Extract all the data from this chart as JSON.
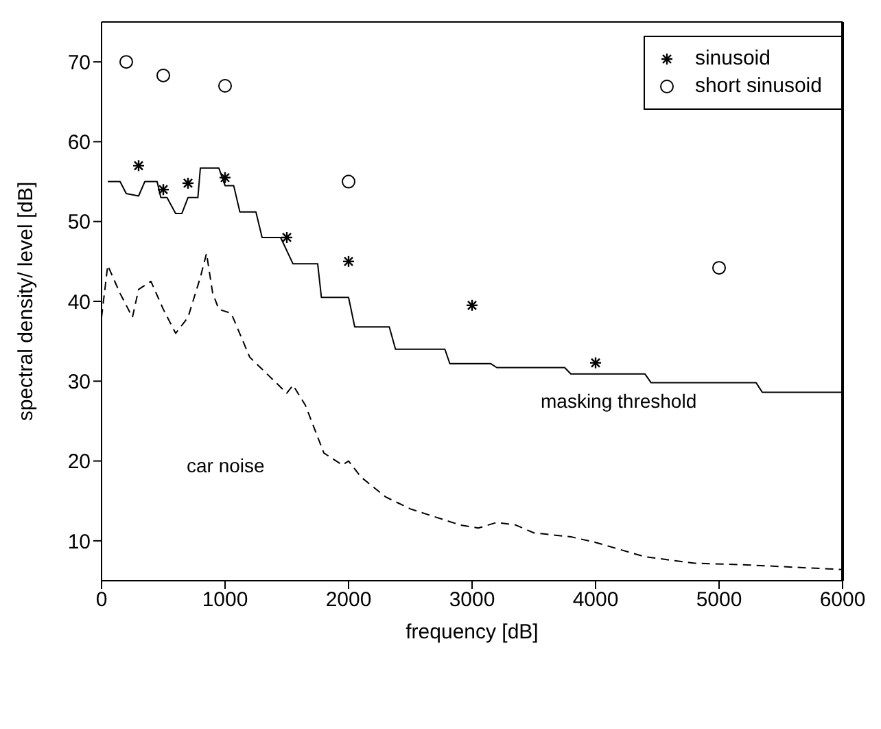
{
  "chart_data": {
    "type": "line",
    "xlabel": "frequency [dB]",
    "ylabel": "spectral density/ level [dB]",
    "xlim": [
      0,
      6000
    ],
    "xticks": [
      0,
      1000,
      2000,
      3000,
      4000,
      5000,
      6000
    ],
    "ylim": [
      5,
      75
    ],
    "yticks": [
      10,
      20,
      30,
      40,
      50,
      60,
      70
    ],
    "legend": "top right",
    "series": [
      {
        "color": "#000000",
        "line_style": "solid",
        "marker": "none",
        "x": [
          50,
          150,
          200,
          300,
          350,
          450,
          480,
          530,
          600,
          650,
          700,
          780,
          800,
          950,
          1000,
          1070,
          1120,
          1250,
          1300,
          1450,
          1550,
          1750,
          1780,
          2000,
          2050,
          2330,
          2380,
          2780,
          2820,
          3150,
          3200,
          3750,
          3800,
          4400,
          4450,
          5300,
          5350,
          6000
        ],
        "values": [
          55,
          55,
          53.5,
          53.2,
          55,
          55,
          53,
          53,
          51,
          51,
          53,
          53,
          56.7,
          56.7,
          54.5,
          54.5,
          51.2,
          51.2,
          48,
          48,
          44.7,
          44.7,
          40.5,
          40.5,
          36.8,
          36.8,
          34,
          34,
          32.2,
          32.2,
          31.7,
          31.7,
          30.9,
          30.9,
          29.8,
          29.8,
          28.6,
          28.6
        ]
      },
      {
        "color": "#000000",
        "line_style": "dashed",
        "marker": "none",
        "x": [
          0,
          50,
          150,
          250,
          300,
          400,
          500,
          600,
          700,
          800,
          850,
          900,
          950,
          1050,
          1200,
          1400,
          1500,
          1550,
          1650,
          1800,
          1950,
          2000,
          2100,
          2300,
          2500,
          2800,
          2900,
          3050,
          3200,
          3350,
          3500,
          3800,
          4000,
          4400,
          4800,
          5200,
          6000
        ],
        "values": [
          38,
          44.5,
          41,
          38,
          41.5,
          42.5,
          39,
          36,
          38,
          43,
          46,
          41,
          39,
          38.5,
          33,
          30,
          28.5,
          29.5,
          27,
          21,
          19.5,
          20,
          18,
          15.5,
          14,
          12.5,
          12,
          11.6,
          12.3,
          12,
          11,
          10.5,
          9.8,
          8,
          7.2,
          7,
          6.4
        ]
      },
      {
        "type": "scatter",
        "name": "sinusoid",
        "color": "#000000",
        "marker": "cross",
        "x": [
          300,
          500,
          700,
          1000,
          1500,
          2000,
          3000,
          4000
        ],
        "values": [
          57,
          54,
          54.8,
          55.5,
          48,
          45,
          39.5,
          32.3
        ]
      },
      {
        "type": "scatter",
        "name": "short sinusoid",
        "color": "#000000",
        "marker": "circle",
        "x": [
          200,
          500,
          1000,
          2000,
          5000
        ],
        "values": [
          70,
          68.3,
          67,
          55,
          44.2
        ]
      }
    ],
    "annotations": [
      "masking threshold",
      "car noise"
    ]
  }
}
